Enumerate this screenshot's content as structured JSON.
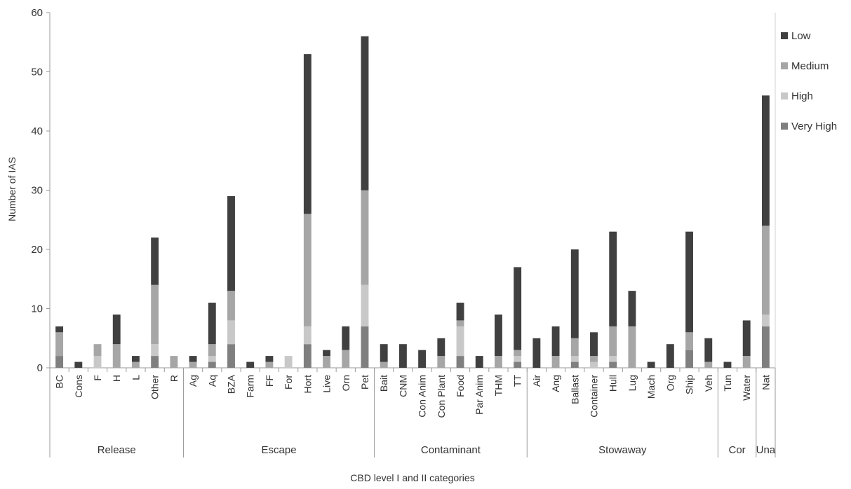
{
  "chart_data": {
    "type": "bar",
    "stacked": true,
    "xlabel": "CBD level I and II categories",
    "ylabel": "Number of IAS",
    "ylim": [
      0,
      60
    ],
    "yticks": [
      0,
      10,
      20,
      30,
      40,
      50,
      60
    ],
    "grid": false,
    "legend_position": "right",
    "categories": [
      "BC",
      "Cons",
      "F",
      "H",
      "L",
      "Other",
      "R",
      "Ag",
      "Aq",
      "BZA",
      "Farm",
      "FF",
      "For",
      "Hort",
      "Live",
      "Orn",
      "Pet",
      "Bait",
      "CNM",
      "Con Anim",
      "Con Plant",
      "Food",
      "Par Anim",
      "THM",
      "TT",
      "Air",
      "Ang",
      "Ballast",
      "Container",
      "Hull",
      "Lug",
      "Mach",
      "Org",
      "Ship",
      "Veh",
      "Tun",
      "Water",
      "Nat"
    ],
    "groups": [
      {
        "name": "Release",
        "count": 7
      },
      {
        "name": "Escape",
        "count": 10
      },
      {
        "name": "Contaminant",
        "count": 8
      },
      {
        "name": "Stowaway",
        "count": 10
      },
      {
        "name": "Cor",
        "count": 2
      },
      {
        "name": "Una",
        "count": 1
      }
    ],
    "series": [
      {
        "name": "Very High",
        "color": "#7f7f7f",
        "values": [
          2,
          0,
          0,
          0,
          0,
          2,
          0,
          0,
          1,
          4,
          0,
          0,
          0,
          4,
          0,
          0,
          7,
          0,
          0,
          0,
          0,
          2,
          0,
          0,
          1,
          0,
          0,
          1,
          0,
          1,
          0,
          0,
          0,
          3,
          0,
          0,
          0,
          7
        ]
      },
      {
        "name": "High",
        "color": "#c8c8c8",
        "values": [
          0,
          0,
          2,
          0,
          0,
          2,
          0,
          0,
          1,
          4,
          0,
          0,
          2,
          3,
          0,
          0,
          7,
          0,
          0,
          0,
          0,
          5,
          0,
          0,
          1,
          0,
          0,
          1,
          1,
          1,
          0,
          0,
          0,
          0,
          0,
          0,
          0,
          2
        ]
      },
      {
        "name": "Medium",
        "color": "#a6a6a6",
        "values": [
          4,
          0,
          2,
          4,
          1,
          10,
          2,
          1,
          2,
          5,
          0,
          1,
          0,
          19,
          2,
          3,
          16,
          1,
          0,
          0,
          2,
          1,
          0,
          2,
          1,
          0,
          2,
          3,
          1,
          5,
          7,
          0,
          0,
          3,
          1,
          0,
          2,
          15
        ]
      },
      {
        "name": "Low",
        "color": "#404040",
        "values": [
          1,
          1,
          0,
          5,
          1,
          8,
          0,
          1,
          7,
          16,
          1,
          1,
          0,
          27,
          1,
          4,
          26,
          3,
          4,
          3,
          3,
          3,
          2,
          7,
          14,
          5,
          5,
          15,
          4,
          16,
          6,
          1,
          4,
          17,
          4,
          1,
          6,
          22
        ]
      }
    ]
  }
}
